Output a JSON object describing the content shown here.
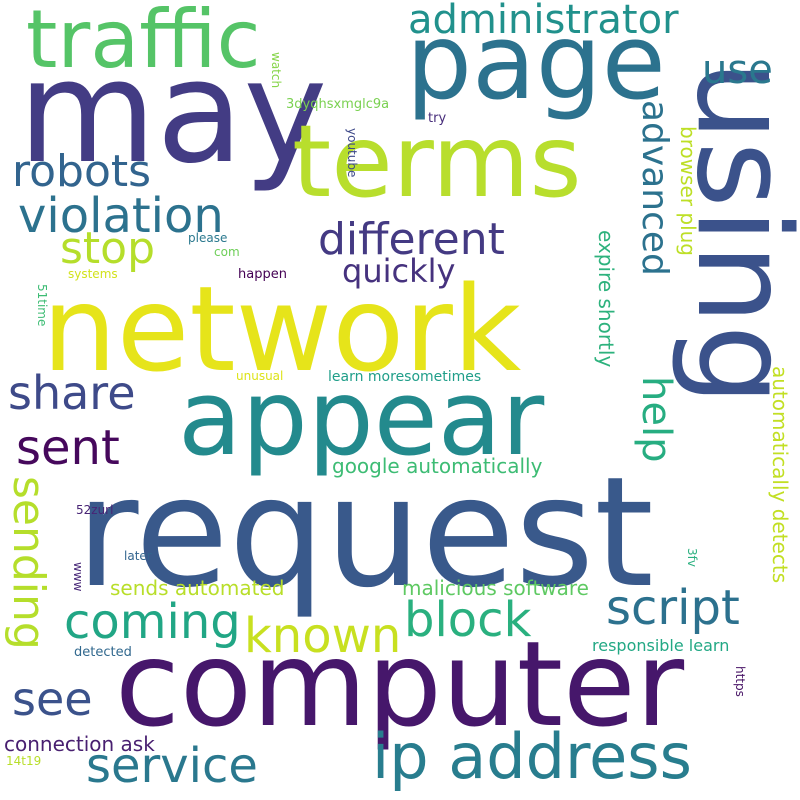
{
  "words": [
    {
      "text": "request",
      "color": "#39598b"
    },
    {
      "text": "computer",
      "color": "#46176b"
    },
    {
      "text": "network",
      "color": "#e6e41a"
    },
    {
      "text": "may",
      "color": "#433c84"
    },
    {
      "text": "using",
      "color": "#3b528b"
    },
    {
      "text": "appear",
      "color": "#238a8d"
    },
    {
      "text": "page",
      "color": "#2c728e"
    },
    {
      "text": "terms",
      "color": "#b8de2d"
    },
    {
      "text": "traffic",
      "color": "#55c467"
    },
    {
      "text": "ip address",
      "color": "#287d8e"
    },
    {
      "text": "administrator",
      "color": "#21918c"
    },
    {
      "text": "robots",
      "color": "#32648e"
    },
    {
      "text": "violation",
      "color": "#2c728e"
    },
    {
      "text": "different",
      "color": "#443a83"
    },
    {
      "text": "stop",
      "color": "#b5de2b"
    },
    {
      "text": "quickly",
      "color": "#46327e"
    },
    {
      "text": "share",
      "color": "#3e4a89"
    },
    {
      "text": "sent",
      "color": "#46085c"
    },
    {
      "text": "service",
      "color": "#2a788e"
    },
    {
      "text": "script",
      "color": "#2c718e"
    },
    {
      "text": "block",
      "color": "#2ab07f"
    },
    {
      "text": "coming",
      "color": "#21a685"
    },
    {
      "text": "known",
      "color": "#c8e020"
    },
    {
      "text": "see",
      "color": "#3b528b"
    },
    {
      "text": "sending",
      "color": "#b5de2b"
    },
    {
      "text": "use",
      "color": "#2a788e"
    },
    {
      "text": "advanced",
      "color": "#2c728e"
    },
    {
      "text": "help",
      "color": "#27ad81"
    },
    {
      "text": "browser plug",
      "color": "#bddf26"
    },
    {
      "text": "expire shortly",
      "color": "#2db27d"
    },
    {
      "text": "automatically detects",
      "color": "#c2df23"
    },
    {
      "text": "google automatically",
      "color": "#3dbc74"
    },
    {
      "text": "malicious software",
      "color": "#5ec962"
    },
    {
      "text": "sends automated",
      "color": "#b8de29"
    },
    {
      "text": "connection ask",
      "color": "#481f70"
    },
    {
      "text": "responsible learn",
      "color": "#22a884"
    },
    {
      "text": "learn moresometimes",
      "color": "#1f9e89"
    },
    {
      "text": "3dyqhsxmglc9a",
      "color": "#7ad151"
    },
    {
      "text": "watch",
      "color": "#86d549"
    },
    {
      "text": "try",
      "color": "#472d7b"
    },
    {
      "text": "youtube",
      "color": "#3e4989"
    },
    {
      "text": "please",
      "color": "#2a788e"
    },
    {
      "text": "com",
      "color": "#6ece58"
    },
    {
      "text": "systems",
      "color": "#d2e21b"
    },
    {
      "text": "happen",
      "color": "#440154"
    },
    {
      "text": "51time",
      "color": "#3dbc74"
    },
    {
      "text": "unusual",
      "color": "#dde318"
    },
    {
      "text": "52zurl",
      "color": "#482475"
    },
    {
      "text": "later",
      "color": "#32648e"
    },
    {
      "text": "www",
      "color": "#482878"
    },
    {
      "text": "3fv",
      "color": "#2ab07f"
    },
    {
      "text": "detected",
      "color": "#31688e"
    },
    {
      "text": "https",
      "color": "#471365"
    },
    {
      "text": "14t19",
      "color": "#b8de29"
    }
  ]
}
